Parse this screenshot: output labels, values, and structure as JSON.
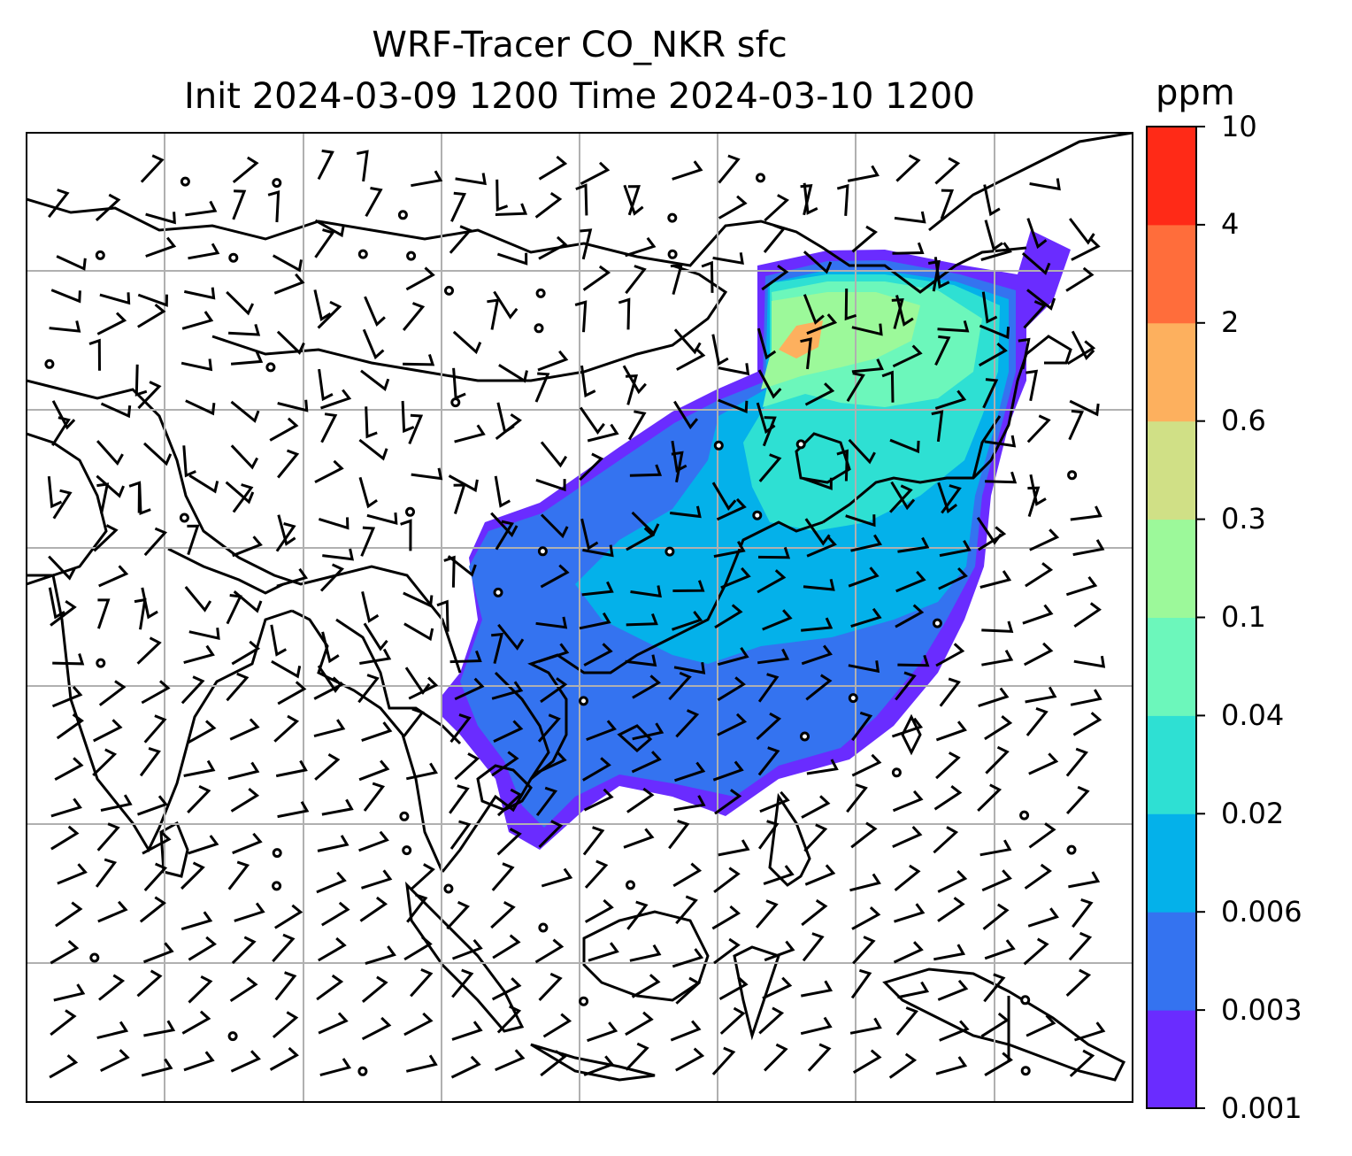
{
  "title": {
    "line1": "WRF-Tracer CO_NKR sfc",
    "line2": "Init 2024-03-09 1200 Time 2024-03-10 1200"
  },
  "colorbar": {
    "unit": "ppm",
    "levels": [
      "0.001",
      "0.003",
      "0.006",
      "0.02",
      "0.04",
      "0.1",
      "0.3",
      "0.6",
      "2",
      "4",
      "10"
    ],
    "colors": [
      "#6a2cff",
      "#3473f0",
      "#04b1ea",
      "#2ee0d3",
      "#6cf7bb",
      "#9cf99a",
      "#d0e086",
      "#fdb05e",
      "#ff6d3b",
      "#ff2a17"
    ]
  },
  "map": {
    "region": "East and Southeast Asia",
    "gridlines": true,
    "vector_symbol": "wind-barb",
    "field_colors": [
      "#6a2cff",
      "#3473f0",
      "#04b1ea",
      "#2ee0d3",
      "#6cf7bb",
      "#9cf99a",
      "#fdb05e"
    ]
  }
}
